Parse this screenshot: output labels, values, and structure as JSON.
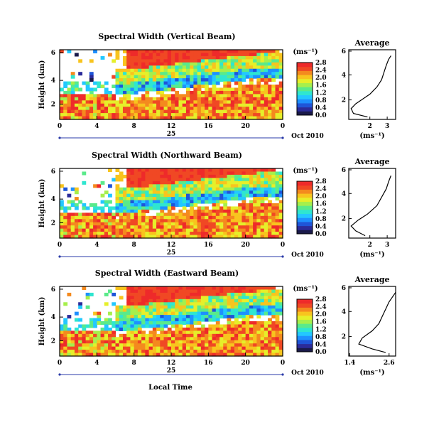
{
  "figure": {
    "xlabel": "Local Time",
    "date_label": "25",
    "month_label": "Oct 2010",
    "ylabel": "Height (km)"
  },
  "colors": {
    "colormap": [
      "#1a1a4a",
      "#2b2b9a",
      "#1f55d8",
      "#1e90ff",
      "#23c8ff",
      "#2fe6d0",
      "#5aea8a",
      "#a6ef4c",
      "#e6ef2a",
      "#f8c41e",
      "#f48a1e",
      "#f04824",
      "#ee2a2a"
    ]
  },
  "chart_data": [
    {
      "type": "heatmap",
      "panel": "spectral-width-vertical",
      "title": "Spectral Width (Vertical Beam)",
      "xlabel": "",
      "ylabel": "Height (km)",
      "xlim": [
        0,
        24
      ],
      "ylim": [
        0.4,
        6
      ],
      "x_ticks": [
        "0",
        "6",
        "12",
        "18",
        "24"
      ],
      "x_minor_labels": [
        "0",
        "4",
        "8",
        "12",
        "16",
        "20",
        "0"
      ],
      "y_ticks": [
        "2",
        "4",
        "6"
      ],
      "colorbar": {
        "unit": "(ms⁻¹)",
        "min": 0.0,
        "max": 2.8,
        "ticks": [
          "0.0",
          "0.4",
          "0.8",
          "1.2",
          "1.6",
          "2.0",
          "2.4",
          "2.8"
        ]
      },
      "boundary_layer_top_km": [
        1.2,
        1.3,
        1.4,
        1.6,
        1.8,
        1.9,
        2.0,
        2.1,
        2.2,
        2.3,
        2.4,
        2.5,
        2.6
      ],
      "average": {
        "title": "Average",
        "xlabel": "(ms⁻¹)",
        "x_ticks": [
          "2",
          "3"
        ],
        "xlim": [
          1.4,
          3.4
        ],
        "y_ticks": [
          "2",
          "4",
          "6"
        ],
        "profile": [
          [
            2.2,
            0.5
          ],
          [
            1.6,
            0.8
          ],
          [
            1.5,
            1.2
          ],
          [
            1.7,
            1.6
          ],
          [
            2.0,
            2.0
          ],
          [
            2.3,
            2.4
          ],
          [
            2.6,
            3.0
          ],
          [
            2.8,
            3.6
          ],
          [
            2.9,
            4.2
          ],
          [
            3.0,
            4.8
          ],
          [
            3.1,
            5.3
          ],
          [
            3.2,
            5.6
          ]
        ]
      }
    },
    {
      "type": "heatmap",
      "panel": "spectral-width-northward",
      "title": "Spectral Width (Northward Beam)",
      "xlabel": "",
      "ylabel": "Height (km)",
      "xlim": [
        0,
        24
      ],
      "ylim": [
        0.4,
        6
      ],
      "x_ticks": [
        "0",
        "4",
        "8",
        "12",
        "16",
        "20",
        "0"
      ],
      "y_ticks": [
        "2",
        "4",
        "6"
      ],
      "colorbar": {
        "unit": "(ms⁻¹)",
        "min": 0.0,
        "max": 2.8,
        "ticks": [
          "0.0",
          "0.4",
          "0.8",
          "1.2",
          "1.6",
          "2.0",
          "2.4",
          "2.8"
        ]
      },
      "boundary_layer_top_km": [
        1.2,
        1.3,
        1.5,
        1.6,
        1.8,
        1.9,
        2.0,
        2.1,
        2.2,
        2.3,
        2.4,
        2.5,
        2.6
      ],
      "average": {
        "title": "Average",
        "xlabel": "(ms⁻¹)",
        "x_ticks": [
          "2",
          "3"
        ],
        "xlim": [
          1.4,
          3.4
        ],
        "y_ticks": [
          "2",
          "4",
          "6"
        ],
        "profile": [
          [
            2.1,
            0.5
          ],
          [
            1.7,
            0.9
          ],
          [
            1.5,
            1.3
          ],
          [
            1.8,
            1.8
          ],
          [
            2.2,
            2.3
          ],
          [
            2.6,
            3.0
          ],
          [
            2.8,
            3.7
          ],
          [
            3.0,
            4.4
          ],
          [
            3.1,
            5.0
          ],
          [
            3.2,
            5.5
          ]
        ]
      }
    },
    {
      "type": "heatmap",
      "panel": "spectral-width-eastward",
      "title": "Spectral Width (Eastward Beam)",
      "xlabel": "Local Time",
      "ylabel": "Height (km)",
      "xlim": [
        0,
        24
      ],
      "ylim": [
        0.4,
        6
      ],
      "x_ticks": [
        "0",
        "4",
        "8",
        "12",
        "16",
        "20",
        "0"
      ],
      "y_ticks": [
        "2",
        "4",
        "6"
      ],
      "colorbar": {
        "unit": "(ms⁻¹)",
        "min": 0.0,
        "max": 2.8,
        "ticks": [
          "0.0",
          "0.4",
          "0.8",
          "1.2",
          "1.6",
          "2.0",
          "2.4",
          "2.8"
        ]
      },
      "boundary_layer_top_km": [
        1.2,
        1.3,
        1.5,
        1.6,
        1.7,
        1.9,
        2.0,
        2.1,
        2.2,
        2.3,
        2.4,
        2.5,
        2.6
      ],
      "average": {
        "title": "Average",
        "xlabel": "(ms⁻¹)",
        "x_ticks": [
          "1.4",
          "2.6"
        ],
        "xlim": [
          1.4,
          2.8
        ],
        "y_ticks": [
          "2",
          "4",
          "6"
        ],
        "profile": [
          [
            2.5,
            0.6
          ],
          [
            2.1,
            0.9
          ],
          [
            1.7,
            1.3
          ],
          [
            1.8,
            1.8
          ],
          [
            2.1,
            2.4
          ],
          [
            2.3,
            3.0
          ],
          [
            2.4,
            3.6
          ],
          [
            2.5,
            4.2
          ],
          [
            2.6,
            4.8
          ],
          [
            2.7,
            5.2
          ],
          [
            2.8,
            5.6
          ]
        ]
      }
    }
  ]
}
